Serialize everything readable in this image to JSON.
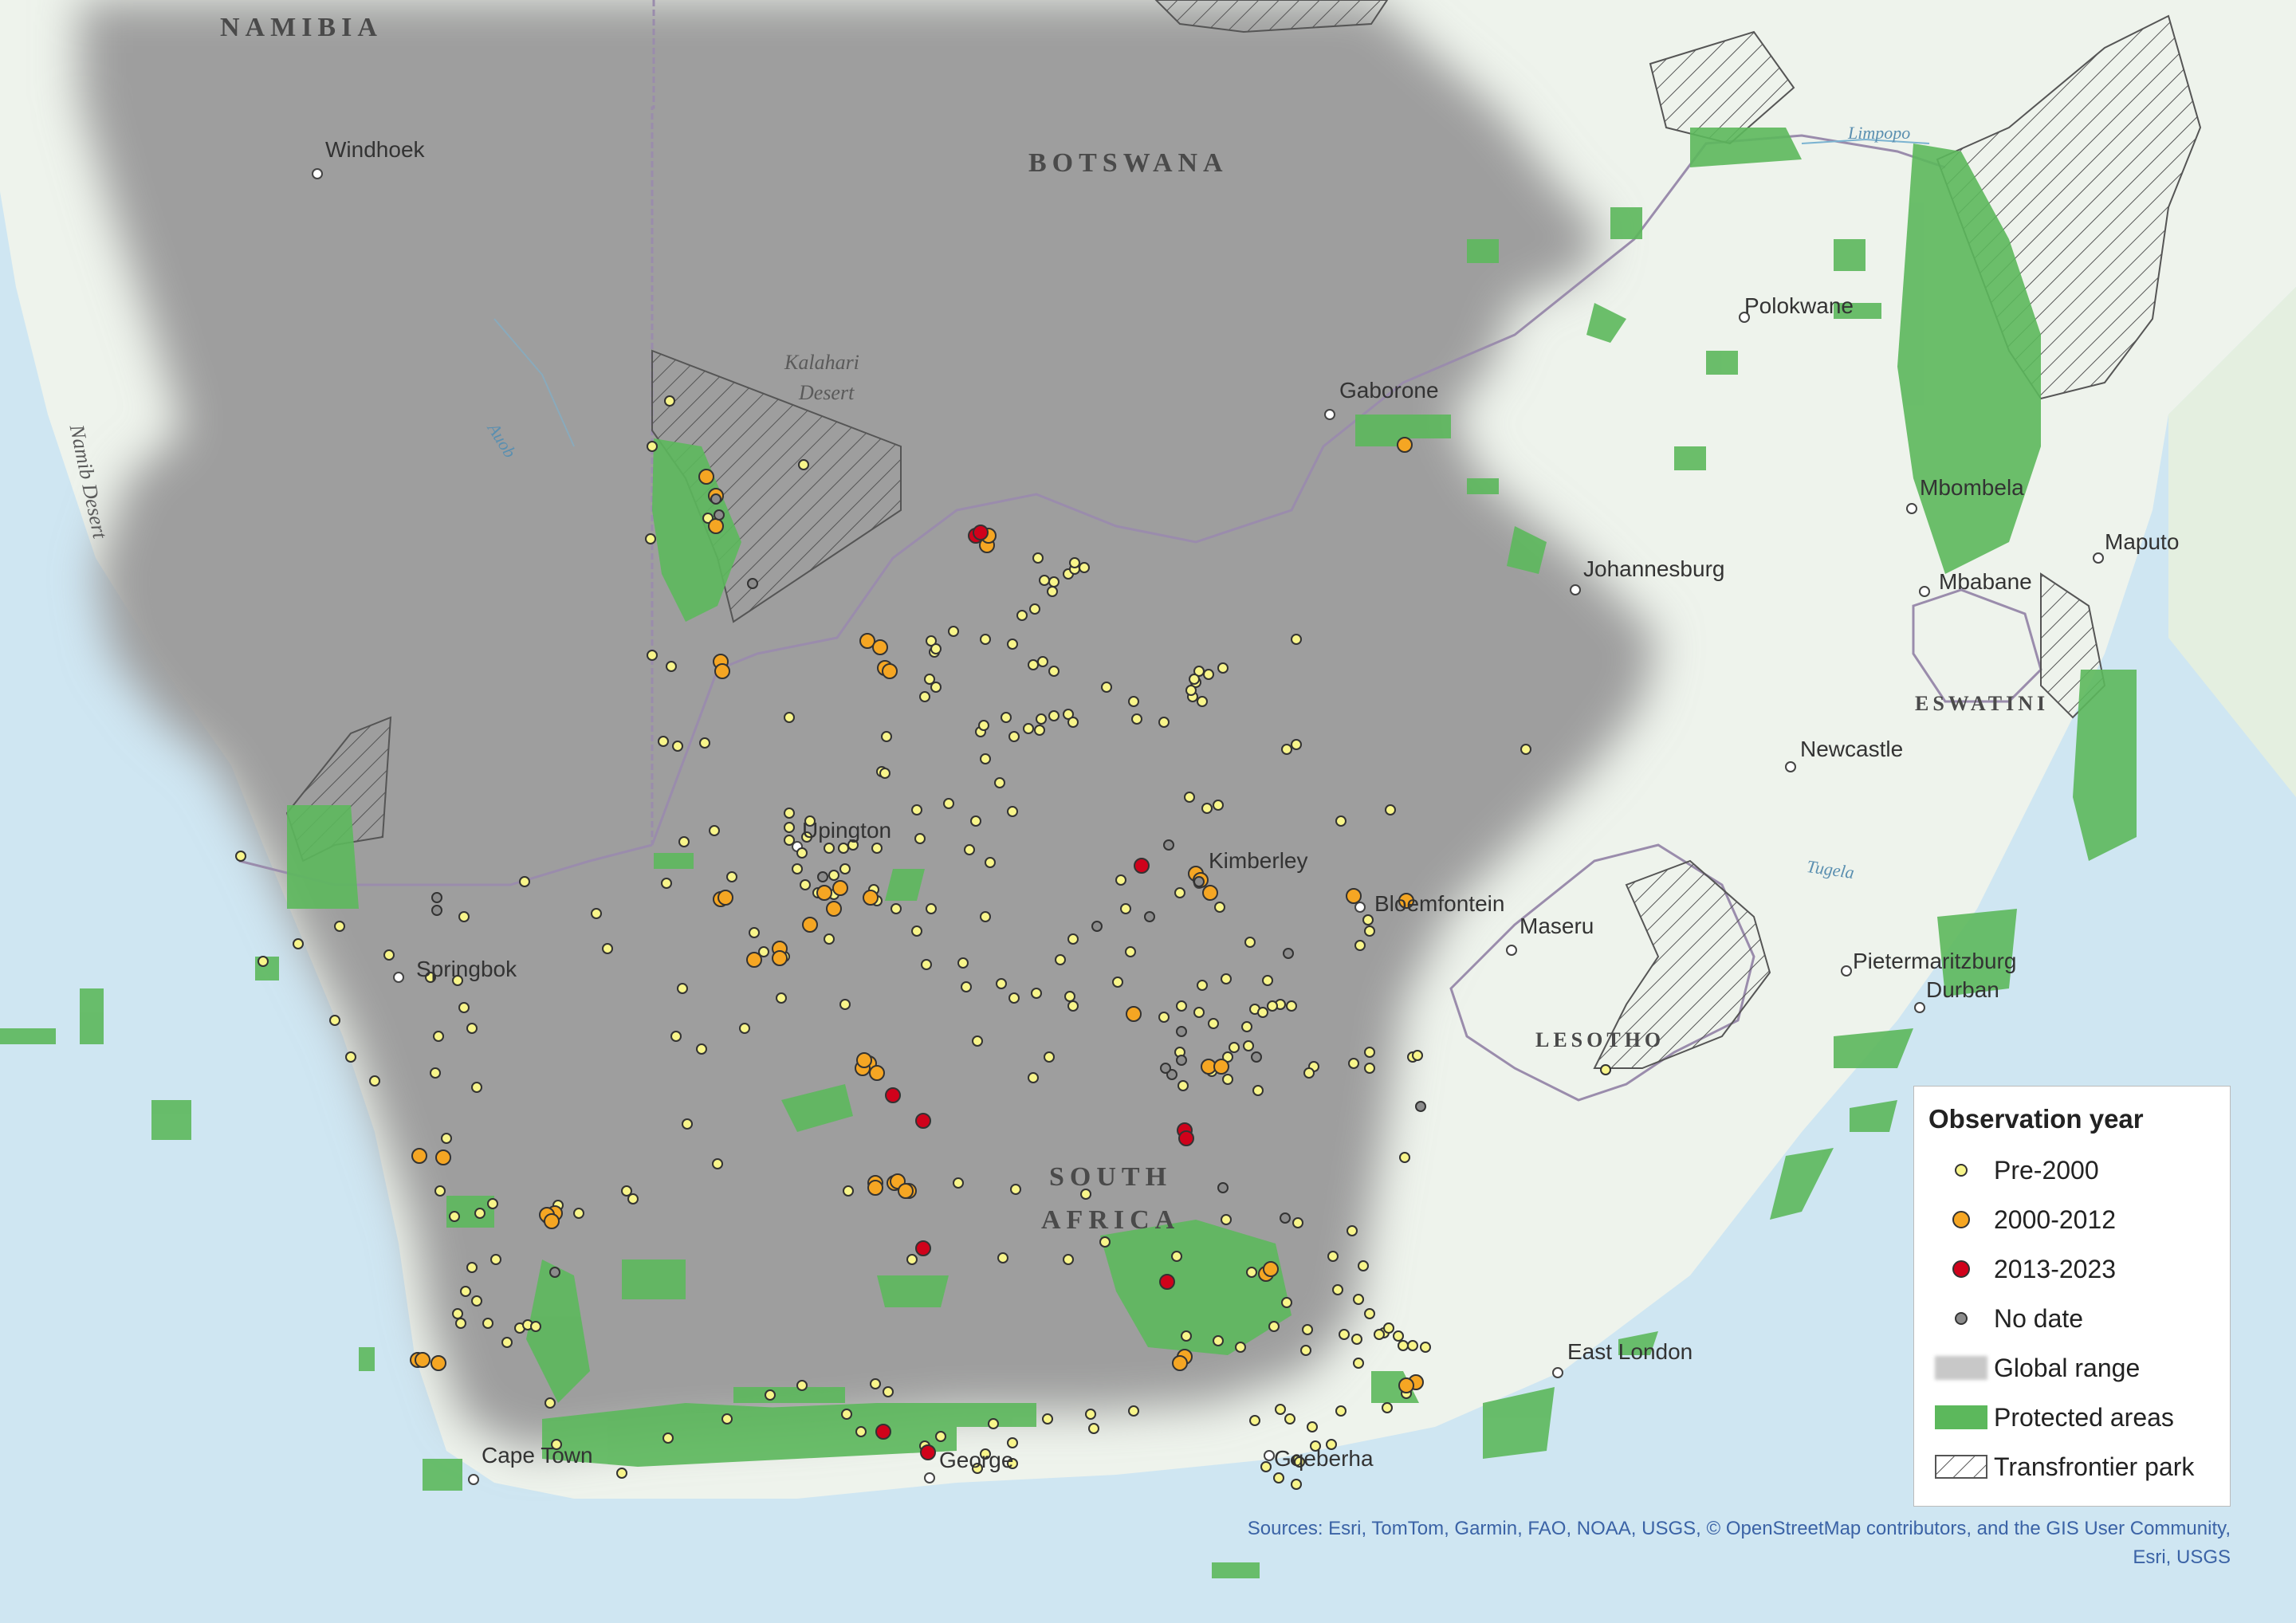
{
  "map": {
    "country_labels": [
      {
        "id": "namibia",
        "text": "NAMIBIA"
      },
      {
        "id": "botswana",
        "text": "BOTSWANA"
      },
      {
        "id": "south-africa-1",
        "text": "SOUTH"
      },
      {
        "id": "south-africa-2",
        "text": "AFRICA"
      },
      {
        "id": "lesotho",
        "text": "LESOTHO"
      },
      {
        "id": "eswatini",
        "text": "ESWATINI"
      }
    ],
    "cities": [
      {
        "id": "windhoek",
        "text": "Windhoek"
      },
      {
        "id": "gaborone",
        "text": "Gaborone"
      },
      {
        "id": "polokwane",
        "text": "Polokwane"
      },
      {
        "id": "mbombela",
        "text": "Mbombela"
      },
      {
        "id": "maputo",
        "text": "Maputo"
      },
      {
        "id": "mbabane",
        "text": "Mbabane"
      },
      {
        "id": "johannesburg",
        "text": "Johannesburg"
      },
      {
        "id": "newcastle",
        "text": "Newcastle"
      },
      {
        "id": "upington",
        "text": "Upington"
      },
      {
        "id": "kimberley",
        "text": "Kimberley"
      },
      {
        "id": "bloemfontein",
        "text": "Bloemfontein"
      },
      {
        "id": "maseru",
        "text": "Maseru"
      },
      {
        "id": "springbok",
        "text": "Springbok"
      },
      {
        "id": "pietermaritzburg",
        "text": "Pietermaritzburg"
      },
      {
        "id": "durban",
        "text": "Durban"
      },
      {
        "id": "east-london",
        "text": "East London"
      },
      {
        "id": "gqeberha",
        "text": "Gqeberha"
      },
      {
        "id": "george",
        "text": "George"
      },
      {
        "id": "cape-town",
        "text": "Cape Town"
      }
    ],
    "features": [
      {
        "id": "kalahari",
        "text": "Kalahari"
      },
      {
        "id": "kalahari-desert",
        "text": "Desert"
      },
      {
        "id": "namib",
        "text": "Namib Desert"
      }
    ],
    "rivers": [
      {
        "id": "auob",
        "text": "Auob"
      },
      {
        "id": "limpopo",
        "text": "Limpopo"
      },
      {
        "id": "tugela",
        "text": "Tugela"
      }
    ],
    "colors": {
      "sea": "#cfe6f2",
      "land": "#eef3ec",
      "range": "#9c9c9c",
      "protected": "#5cb85c",
      "pre2000": "#f8f58a",
      "y2000_2012": "#f5a623",
      "y2013_2023": "#d0021b",
      "nodate": "#8c8c8c"
    }
  },
  "legend": {
    "title": "Observation year",
    "items": [
      {
        "id": "pre-2000",
        "label": "Pre-2000"
      },
      {
        "id": "2000-2012",
        "label": "2000-2012"
      },
      {
        "id": "2013-2023",
        "label": "2013-2023"
      },
      {
        "id": "no-date",
        "label": "No date"
      },
      {
        "id": "global-range",
        "label": "Global range"
      },
      {
        "id": "protected-areas",
        "label": "Protected areas"
      },
      {
        "id": "transfrontier-park",
        "label": "Transfrontier park"
      }
    ]
  },
  "sources": {
    "line1": "Sources: Esri, TomTom, Garmin, FAO, NOAA, USGS, © OpenStreetMap contributors, and the GIS User Community,",
    "line2": "Esri, USGS"
  }
}
